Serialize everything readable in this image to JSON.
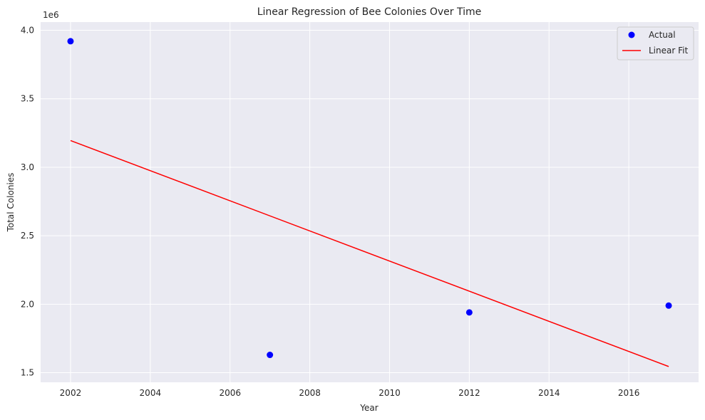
{
  "chart_data": {
    "type": "scatter",
    "title": "Linear Regression of Bee Colonies Over Time",
    "xlabel": "Year",
    "ylabel": "Total Colonies",
    "y_offset_label": "1e6",
    "xlim": [
      2001.25,
      2017.75
    ],
    "ylim": [
      1.43,
      4.06
    ],
    "x_ticks": [
      2002,
      2004,
      2006,
      2008,
      2010,
      2012,
      2014,
      2016
    ],
    "y_ticks": [
      1.5,
      2.0,
      2.5,
      3.0,
      3.5,
      4.0
    ],
    "y_tick_labels": [
      "1.5",
      "2.0",
      "2.5",
      "3.0",
      "3.5",
      "4.0"
    ],
    "grid": true,
    "legend_position": "top-right",
    "series": [
      {
        "name": "Actual",
        "kind": "scatter",
        "color": "#0000ff",
        "points": [
          {
            "x": 2002,
            "y": 3.92
          },
          {
            "x": 2007,
            "y": 1.63
          },
          {
            "x": 2012,
            "y": 1.94
          },
          {
            "x": 2017,
            "y": 1.99
          }
        ]
      },
      {
        "name": "Linear Fit",
        "kind": "line",
        "color": "#ff0000",
        "points": [
          {
            "x": 2002,
            "y": 3.195
          },
          {
            "x": 2017,
            "y": 1.545
          }
        ]
      }
    ]
  }
}
